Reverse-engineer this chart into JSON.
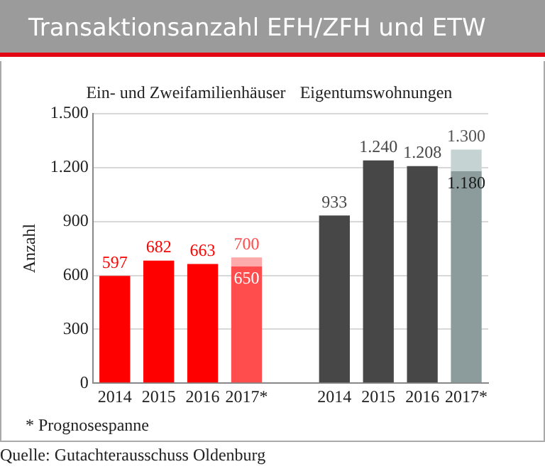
{
  "chart_data": {
    "type": "bar",
    "title": "Transaktionsanzahl EFH/ZFH und ETW",
    "ylabel": "Anzahl",
    "stacked": true,
    "categories": [
      "2014",
      "2015",
      "2016",
      "2017*",
      null,
      "2014",
      "2015",
      "2016",
      "2017*"
    ],
    "series": [
      {
        "colors": [
          "#ff0000",
          "#ff0000",
          "#ff0000",
          "#ff4c4c",
          null,
          "#474747",
          "#474747",
          "#474747",
          "#8c9c9c"
        ],
        "values": [
          597,
          682,
          663,
          650,
          null,
          933,
          1240,
          1208,
          1180
        ],
        "value_labels": [
          "597",
          "682",
          "663",
          "650",
          null,
          "933",
          "1.240",
          "1.208",
          "1.180"
        ]
      },
      {
        "colors": [
          null,
          null,
          null,
          "#ffaaaa",
          null,
          null,
          null,
          null,
          "#c5d3d3"
        ],
        "values": [
          null,
          null,
          null,
          50,
          null,
          null,
          null,
          null,
          120
        ]
      }
    ],
    "totals": [
      null,
      null,
      null,
      "700",
      null,
      null,
      null,
      null,
      "1.300"
    ],
    "ylim": [
      0,
      1500
    ],
    "yticks": [
      0,
      300,
      600,
      900,
      {
        "value": 1200,
        "label": "1.200"
      },
      {
        "value": 1500,
        "label": "1.500"
      }
    ],
    "grid": "y",
    "legend": false,
    "annotations": [
      "Ein- und Zweifamilienhäuser",
      "Eigentumswohnungen",
      "* Prognosespanne",
      "Quelle: Gutachterausschuss Oldenburg"
    ]
  }
}
